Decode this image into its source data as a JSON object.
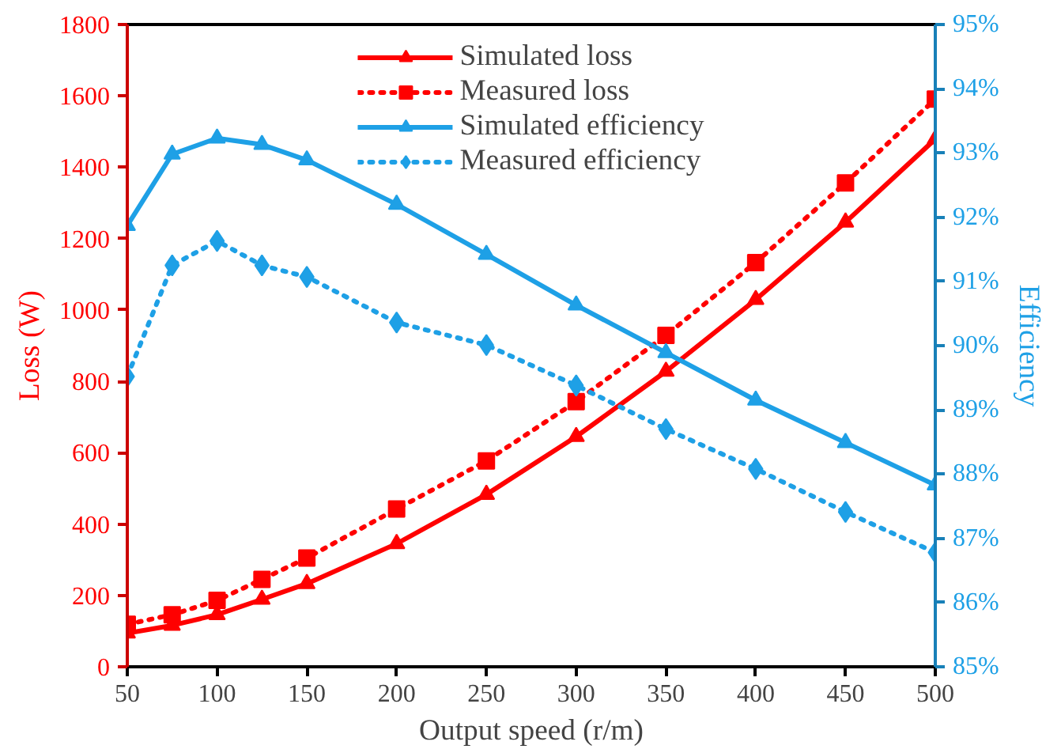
{
  "chart_data": {
    "type": "line",
    "xlabel": "Output speed (r/m)",
    "ylabel": "Loss (W)",
    "y2label": "Efficiency",
    "x": [
      50,
      75,
      100,
      125,
      150,
      200,
      250,
      300,
      350,
      400,
      450,
      500
    ],
    "xlim": [
      50,
      500
    ],
    "xticks": [
      50,
      100,
      150,
      200,
      250,
      300,
      350,
      400,
      450,
      500
    ],
    "ylim": [
      0,
      1800
    ],
    "yticks": [
      0,
      200,
      400,
      600,
      800,
      1000,
      1200,
      1400,
      1600,
      1800
    ],
    "y2lim": [
      85,
      95
    ],
    "y2ticks": [
      {
        "value": 85,
        "label": "85%"
      },
      {
        "value": 86,
        "label": "86%"
      },
      {
        "value": 87,
        "label": "87%"
      },
      {
        "value": 88,
        "label": "88%"
      },
      {
        "value": 89,
        "label": "89%"
      },
      {
        "value": 90,
        "label": "90%"
      },
      {
        "value": 91,
        "label": "91%"
      },
      {
        "value": 92,
        "label": "92%"
      },
      {
        "value": 93,
        "label": "93%"
      },
      {
        "value": 94,
        "label": "94%"
      },
      {
        "value": 95,
        "label": "95%"
      }
    ],
    "grid": false,
    "legend": "top",
    "series": [
      {
        "name": "Simulated loss",
        "color": "#ff0000",
        "marker": "triangle",
        "line_style": "solid",
        "values": [
          94,
          116,
          146,
          189,
          233,
          345,
          483,
          645,
          828,
          1029,
          1246,
          1479
        ]
      },
      {
        "name": "Measured loss",
        "color": "#ff0000",
        "marker": "square",
        "line_style": "dotted",
        "values": [
          119,
          146,
          186,
          245,
          305,
          442,
          577,
          743,
          929,
          1133,
          1356,
          1591
        ]
      },
      {
        "name": "Simulated efficiency",
        "color": "#1ea0e6",
        "marker": "triangle",
        "line_style": "solid",
        "axis": "y2",
        "values": [
          91.87,
          92.98,
          93.23,
          93.13,
          92.89,
          92.2,
          91.42,
          90.63,
          89.89,
          89.15,
          88.49,
          87.83
        ]
      },
      {
        "name": "Measured efficiency",
        "color": "#1ea0e6",
        "marker": "diamond",
        "line_style": "dotted",
        "axis": "y2",
        "values": [
          89.52,
          91.25,
          91.63,
          91.25,
          91.07,
          90.36,
          90.01,
          89.38,
          88.7,
          88.08,
          87.41,
          86.78
        ]
      }
    ]
  }
}
